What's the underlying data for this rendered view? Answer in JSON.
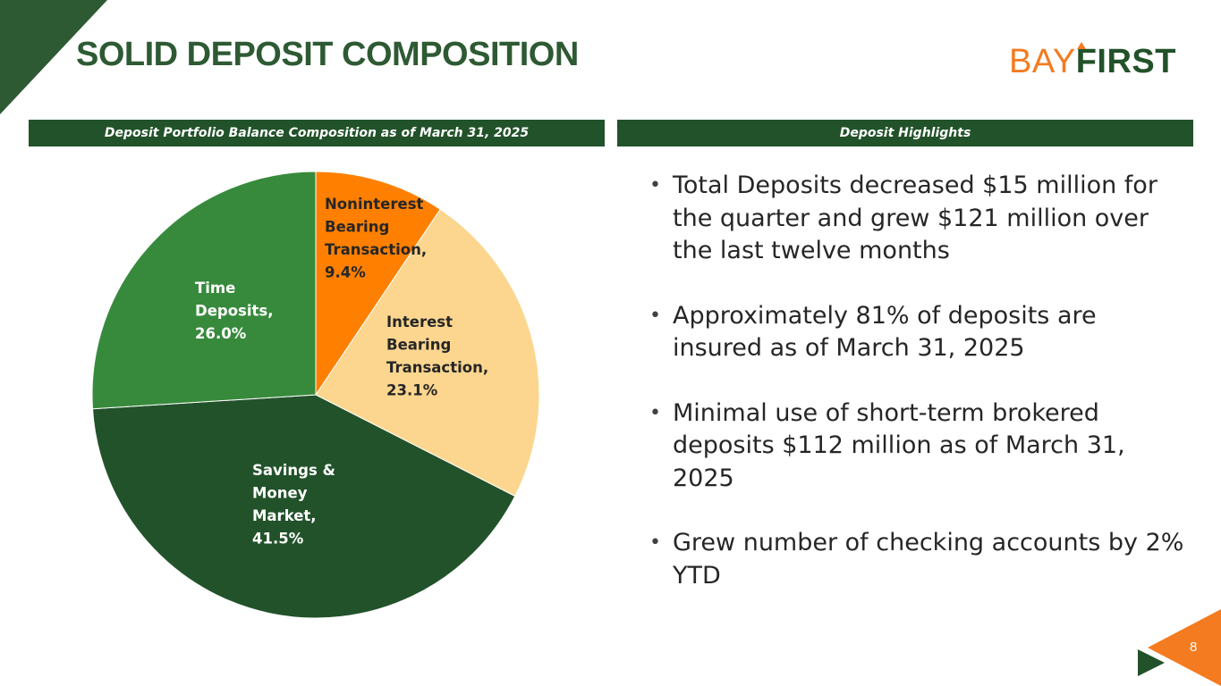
{
  "header": {
    "title": "SOLID DEPOSIT COMPOSITION",
    "logo_bay": "BAY",
    "logo_first": "FIRST"
  },
  "left_panel": {
    "heading": "Deposit Portfolio Balance Composition as of March 31, 2025"
  },
  "right_panel": {
    "heading": "Deposit Highlights",
    "bullets": [
      "Total Deposits decreased $15 million for the quarter and  grew $121 million over the last twelve months",
      "Approximately 81% of deposits are insured as of March 31, 2025",
      "Minimal use of short-term brokered deposits $112 million as of March 31, 2025",
      "Grew number of checking accounts by 2% YTD"
    ]
  },
  "chart_data": {
    "type": "pie",
    "title": "Deposit Portfolio Balance Composition as of March 31, 2025",
    "slices": [
      {
        "label_lines": [
          "Noninterest",
          "Bearing",
          "Transaction,",
          "9.4%"
        ],
        "value": 9.4,
        "color": "#ff8000",
        "label_color": "#262626"
      },
      {
        "label_lines": [
          "Interest",
          "Bearing",
          "Transaction,",
          "23.1%"
        ],
        "value": 23.1,
        "color": "#fcd68f",
        "label_color": "#262626"
      },
      {
        "label_lines": [
          "Savings &",
          "Money",
          "Market,",
          "41.5%"
        ],
        "value": 41.5,
        "color": "#22522a",
        "label_color": "#ffffff"
      },
      {
        "label_lines": [
          "Time",
          "Deposits,",
          "26.0%"
        ],
        "value": 26.0,
        "color": "#378a3c",
        "label_color": "#ffffff"
      }
    ]
  },
  "footer": {
    "page_number": "8"
  },
  "colors": {
    "brand_green": "#22522a",
    "brand_orange": "#f47b20"
  }
}
